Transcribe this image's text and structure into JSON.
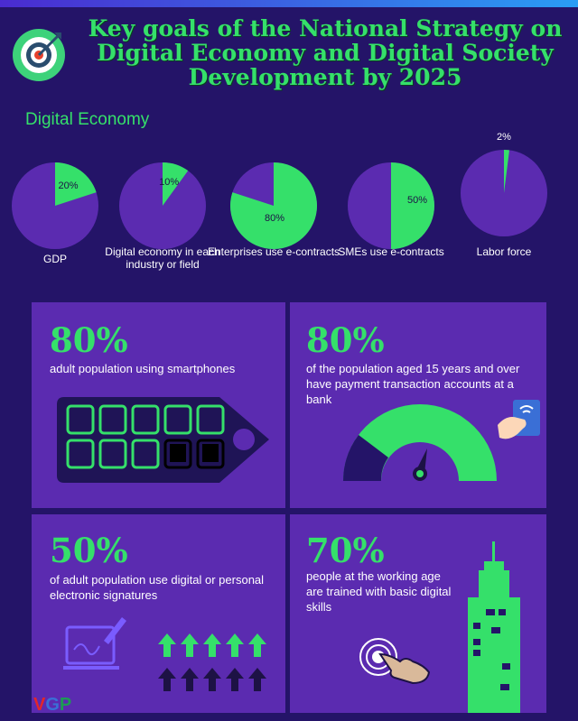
{
  "title": "Key goals of the National Strategy on Digital Economy and Digital Society Development by 2025",
  "section_title": "Digital Economy",
  "pies": [
    {
      "label": "GDP",
      "value": 20,
      "value_label": "20%"
    },
    {
      "label": "Digital economy in each industry or field",
      "value": 10,
      "value_label": "10%"
    },
    {
      "label": "Enterprises use e-contracts",
      "value": 80,
      "value_label": "80%"
    },
    {
      "label": "SMEs use e-contracts",
      "value": 50,
      "value_label": "50%"
    },
    {
      "label": "Labor force",
      "value": 2,
      "value_label": "2%"
    }
  ],
  "colors": {
    "background": "#241468",
    "panel": "#5b2bb0",
    "accent": "#35e06a",
    "pie_base": "#5b2bb0"
  },
  "stats": [
    {
      "pct": "80%",
      "text": "adult population using smartphones"
    },
    {
      "pct": "80%",
      "text": "of the population aged 15 years and over have payment transaction accounts at a bank"
    },
    {
      "pct": "50%",
      "text": "of adult population use digital or personal electronic signatures"
    },
    {
      "pct": "70%",
      "text": "people at the working age are trained with basic digital skills"
    }
  ],
  "icons": [
    "target-icon",
    "smartphones-icon",
    "gauge-icon",
    "card-hand-icon",
    "tablet-pen-icon",
    "arrows-icon",
    "building-icon",
    "hand-touch-icon"
  ],
  "brand": {
    "v": "V",
    "g": "G",
    "p": "P"
  }
}
